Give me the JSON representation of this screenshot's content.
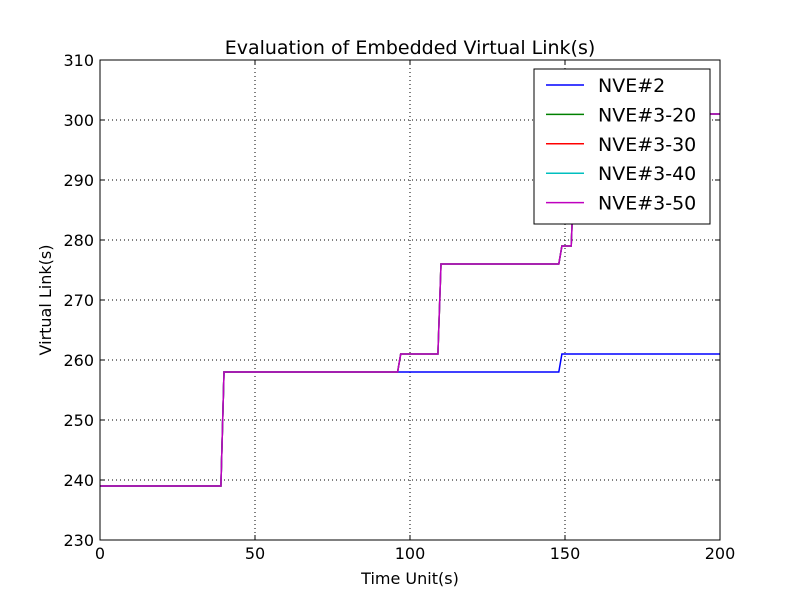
{
  "chart_data": {
    "type": "line",
    "title": "Evaluation of Embedded Virtual Link(s)",
    "xlabel": "Time Unit(s)",
    "ylabel": "Virtual Link(s)",
    "xlim": [
      0,
      200
    ],
    "ylim": [
      230,
      310
    ],
    "xticks": [
      0,
      50,
      100,
      150,
      200
    ],
    "yticks": [
      230,
      240,
      250,
      260,
      270,
      280,
      290,
      300,
      310
    ],
    "grid": true,
    "legend_position": "top-right",
    "series": [
      {
        "name": "NVE#2",
        "color": "#0000ff",
        "x": [
          0,
          39,
          40,
          148,
          149,
          200
        ],
        "y": [
          239,
          239,
          258,
          258,
          261,
          261
        ]
      },
      {
        "name": "NVE#3-20",
        "color": "#008000",
        "x": [
          0,
          39,
          40,
          96,
          97,
          109,
          110,
          148,
          149,
          152,
          153,
          160,
          200
        ],
        "y": [
          239,
          239,
          258,
          258,
          261,
          261,
          276,
          276,
          279,
          279,
          292,
          301,
          301
        ]
      },
      {
        "name": "NVE#3-30",
        "color": "#ff0000",
        "x": [
          0,
          39,
          40,
          96,
          97,
          109,
          110,
          148,
          149,
          152,
          153,
          160,
          200
        ],
        "y": [
          239,
          239,
          258,
          258,
          261,
          261,
          276,
          276,
          279,
          279,
          292,
          301,
          301
        ]
      },
      {
        "name": "NVE#3-40",
        "color": "#00bfbf",
        "x": [
          0,
          39,
          40,
          96,
          97,
          109,
          110,
          148,
          149,
          152,
          153,
          160,
          200
        ],
        "y": [
          239,
          239,
          258,
          258,
          261,
          261,
          276,
          276,
          279,
          279,
          292,
          301,
          301
        ]
      },
      {
        "name": "NVE#3-50",
        "color": "#bf00bf",
        "x": [
          0,
          39,
          40,
          96,
          97,
          109,
          110,
          148,
          149,
          152,
          153,
          160,
          200
        ],
        "y": [
          239,
          239,
          258,
          258,
          261,
          261,
          276,
          276,
          279,
          279,
          292,
          301,
          301
        ]
      }
    ]
  }
}
